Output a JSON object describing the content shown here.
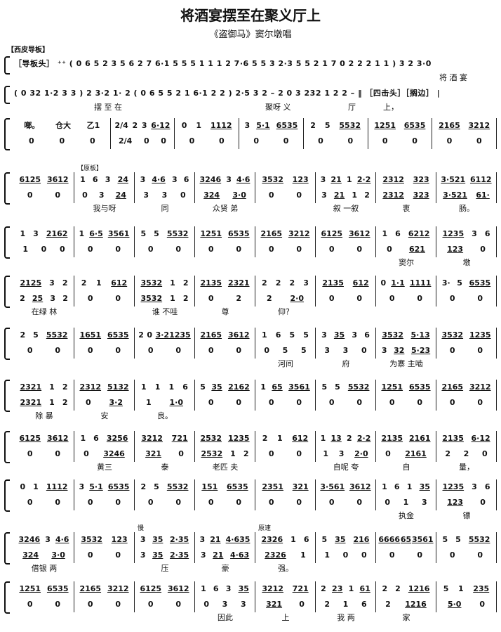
{
  "title": "将酒宴摆至在聚义厅上",
  "subtitle": "《盗御马》窦尔墩唱",
  "section_label": "【西皮导板】",
  "free_lines": [
    {
      "notes": "［导板头］ ⁺⁺ ( 0 6 5 2 3 5 6 2 7 6·1 5 5 5 1 1 1 2 7·6 5 5 3  2·3 5 5 2 1 7 0 2 2 2 1 1 ) 3 2 3·0",
      "lyrics": [
        "将 酒 宴"
      ]
    },
    {
      "notes": "( 0 32 1·2 3 3 ) 2 3·2 1· 2 ( 0 6 5 5 2 1 6·1 2 2 ) 2·5 3 2 – 2 0 3 232 1 2 2 –  ‖ ［四击头］［搁边］ |",
      "lyrics": [
        "摆 至 在",
        "聚呀 义",
        "厅",
        "上，"
      ]
    }
  ],
  "systems": [
    {
      "measures": [
        {
          "u": "啷。 仓大 乙1",
          "l": "0 0 0"
        },
        {
          "u": "2/4 2 3 6·12",
          "l": "2/4 0 0"
        },
        {
          "u": "0 1 1112",
          "l": "0 0"
        },
        {
          "u": "3 5·1 6535",
          "l": "0 0"
        },
        {
          "u": "2 5 5532",
          "l": "0 0"
        },
        {
          "u": "1251 6535",
          "l": "0 0"
        },
        {
          "u": "2165 3212",
          "l": "0 0"
        }
      ]
    },
    {
      "measures": [
        {
          "u": "6125 3612",
          "l": "0 0"
        },
        {
          "u": "1 6 3 24",
          "l": "0 3 24",
          "ly": "我与呀",
          "label": "【原板】"
        },
        {
          "u": "3 4·6 3 6",
          "l": "3 3 0",
          "ly": "同"
        },
        {
          "u": "3246 3 4·6",
          "l": "324 3·0",
          "ly": "众贤 弟"
        },
        {
          "u": "3532 123",
          "l": "0 0"
        },
        {
          "u": "3 21 1 2·2",
          "l": "3 21 1 2",
          "ly": "叙 一叙"
        },
        {
          "u": "2312 323",
          "l": "2312 323",
          "ly": "衷"
        },
        {
          "u": "3·521 6112",
          "l": "3·521 61·",
          "ly": "肠。"
        }
      ]
    },
    {
      "measures": [
        {
          "u": "1 3 2162",
          "l": "1 0 0"
        },
        {
          "u": "1 6·5 3561",
          "l": "0 0"
        },
        {
          "u": "5 5 5532",
          "l": "0 0"
        },
        {
          "u": "1251 6535",
          "l": "0 0"
        },
        {
          "u": "2165 3212",
          "l": "0 0"
        },
        {
          "u": "6125 3612",
          "l": "0 0"
        },
        {
          "u": "1 6 6212",
          "l": "0 621",
          "ly": "窦尔"
        },
        {
          "u": "1235 3 6",
          "l": "123 0",
          "ly": "墩"
        }
      ]
    },
    {
      "measures": [
        {
          "u": "2125 3 2",
          "l": "2 25 3 2",
          "ly": "在绿 林"
        },
        {
          "u": "2 1 612",
          "l": "0 0"
        },
        {
          "u": "3532 1 2",
          "l": "3532 1 2",
          "ly": "谁 不哇"
        },
        {
          "u": "2135 2321",
          "l": "0 2",
          "ly": "尊"
        },
        {
          "u": "2 2 2 3",
          "l": "2 2·0",
          "ly": "仰？"
        },
        {
          "u": "2135 612",
          "l": "0 0"
        },
        {
          "u": "0 1·1 1111",
          "l": "0 0"
        },
        {
          "u": "3· 5 6535",
          "l": "0 0"
        }
      ]
    },
    {
      "measures": [
        {
          "u": "2 5 5532",
          "l": "0 0"
        },
        {
          "u": "1651 6535",
          "l": "0 0"
        },
        {
          "u": "2 0 3·21235",
          "l": "0 0"
        },
        {
          "u": "2165 3612",
          "l": "0 0"
        },
        {
          "u": "1 6 5 5",
          "l": "0 5 5",
          "ly": "河间"
        },
        {
          "u": "3 35 3 6",
          "l": "3 3 0",
          "ly": "府"
        },
        {
          "u": "3532 5·13",
          "l": "3 32 5·23",
          "ly": "为寨 主啮"
        },
        {
          "u": "3532 1235",
          "l": "0 0"
        }
      ]
    },
    {
      "measures": [
        {
          "u": "2321 1 2",
          "l": "2321 1 2",
          "ly": "除 暴"
        },
        {
          "u": "2312 5132",
          "l": "0 3·2",
          "ly": "安"
        },
        {
          "u": "1 1 1 6",
          "l": "1 1·0",
          "ly": "良。"
        },
        {
          "u": "5 35 2162",
          "l": "0 0"
        },
        {
          "u": "1 65 3561",
          "l": "0 0"
        },
        {
          "u": "5 5 5532",
          "l": "0 0"
        },
        {
          "u": "1251 6535",
          "l": "0 0"
        },
        {
          "u": "2165 3212",
          "l": "0 0"
        }
      ]
    },
    {
      "measures": [
        {
          "u": "6125 3612",
          "l": "0 0"
        },
        {
          "u": "1 6 3256",
          "l": "0 3246",
          "ly": "黄三"
        },
        {
          "u": "3212 721",
          "l": "321 0",
          "ly": "泰"
        },
        {
          "u": "2532 1235",
          "l": "2532 1 2",
          "ly": "老匹 夫"
        },
        {
          "u": "2 1 612",
          "l": "0 0"
        },
        {
          "u": "1 13 2 2·2",
          "l": "1 3 2·0",
          "ly": "自呢 夸"
        },
        {
          "u": "2135 2161",
          "l": "0 2161",
          "ly": "自"
        },
        {
          "u": "2135 6·12",
          "l": "2 2 0",
          "ly": "量，"
        }
      ]
    },
    {
      "measures": [
        {
          "u": "0 1 1112",
          "l": "0 0"
        },
        {
          "u": "3 5·1 6535",
          "l": "0 0"
        },
        {
          "u": "2 5 5532",
          "l": "0 0"
        },
        {
          "u": "151 6535",
          "l": "0 0"
        },
        {
          "u": "2351 321",
          "l": "0 0"
        },
        {
          "u": "3·561 3612",
          "l": "0 0"
        },
        {
          "u": "1 6 1 35",
          "l": "0 1 3",
          "ly": "执金"
        },
        {
          "u": "1235 3 6",
          "l": "123 0",
          "ly": "镖"
        }
      ]
    },
    {
      "measures": [
        {
          "u": "3246 3 4·6",
          "l": "324 3·0",
          "ly": "借银 两"
        },
        {
          "u": "3532 123",
          "l": "0 0"
        },
        {
          "u": "3 35 2·35",
          "l": "3 35 2·35",
          "ly": "压",
          "label": "慢"
        },
        {
          "u": "3 21 4·635",
          "l": "3 21 4·63",
          "ly": "豪"
        },
        {
          "u": "2326 1 6",
          "l": "2326 1",
          "ly": "强。",
          "label": "原速"
        },
        {
          "u": "5 35 216",
          "l": "1 0 0"
        },
        {
          "u": "6666 65 3561",
          "l": "0 0"
        },
        {
          "u": "5 5 5532",
          "l": "0 0"
        }
      ]
    },
    {
      "measures": [
        {
          "u": "1251 6535",
          "l": "0 0"
        },
        {
          "u": "2165 3212",
          "l": "0 0"
        },
        {
          "u": "6125 3612",
          "l": "0 0"
        },
        {
          "u": "1 6 3 35",
          "l": "0 3 3",
          "ly": "因此"
        },
        {
          "u": "3212 721",
          "l": "321 0",
          "ly": "上"
        },
        {
          "u": "2 23 1 61",
          "l": "2 1 6",
          "ly": "我 两"
        },
        {
          "u": "2 2 1216",
          "l": "2 1216",
          "ly": "家"
        },
        {
          "u": "5 1 235",
          "l": "5·0 0"
        }
      ]
    }
  ]
}
